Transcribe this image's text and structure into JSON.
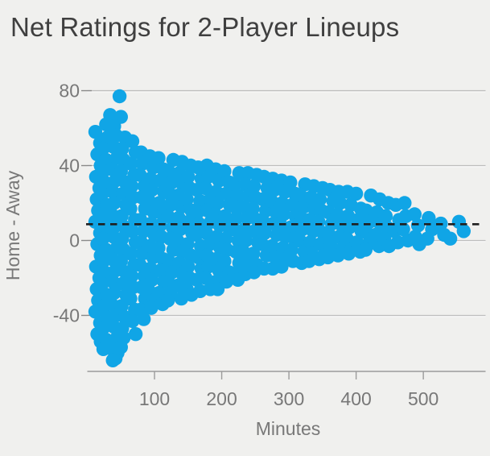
{
  "chart_data": {
    "type": "scatter",
    "title": "Net Ratings for 2-Player Lineups",
    "xlabel": "Minutes",
    "ylabel": "Home - Away",
    "x_ticks": [
      100,
      200,
      300,
      400,
      500
    ],
    "y_ticks": [
      80,
      40,
      0,
      -40
    ],
    "xlim": [
      0,
      593
    ],
    "ylim": [
      -69,
      90
    ],
    "grid": "horizontal",
    "legend": "none",
    "reference_line": {
      "y": 8.7,
      "style": "dashed"
    },
    "marker": {
      "shape": "circle",
      "radius_px": 8.7
    },
    "colors": {
      "background": "#f0f0ee",
      "marker": "#10a5e6",
      "title_text": "#3f3f3f",
      "axis_text": "#787878",
      "gridline": "#bdbdbd",
      "gridline_highlight": "#ffffff",
      "tick_stub": "#8a8a8a",
      "axis_line": "#9b9b9b",
      "reference_line": "#1f1f1f"
    },
    "points": [
      [
        48,
        77
      ],
      [
        34,
        67
      ],
      [
        50,
        66
      ],
      [
        28,
        62
      ],
      [
        40,
        61
      ],
      [
        12,
        58
      ],
      [
        19,
        52
      ],
      [
        15,
        46
      ],
      [
        20,
        40
      ],
      [
        13,
        34
      ],
      [
        18,
        28
      ],
      [
        14,
        22
      ],
      [
        16,
        16
      ],
      [
        12,
        10
      ],
      [
        19,
        4
      ],
      [
        15,
        -2
      ],
      [
        20,
        -8
      ],
      [
        13,
        -14
      ],
      [
        18,
        -20
      ],
      [
        14,
        -26
      ],
      [
        16,
        -32
      ],
      [
        12,
        -38
      ],
      [
        19,
        -44
      ],
      [
        15,
        -50
      ],
      [
        20,
        -54
      ],
      [
        30,
        55
      ],
      [
        23,
        49
      ],
      [
        28,
        43
      ],
      [
        24,
        37
      ],
      [
        26,
        31
      ],
      [
        22,
        25
      ],
      [
        29,
        19
      ],
      [
        25,
        13
      ],
      [
        30,
        7
      ],
      [
        23,
        1
      ],
      [
        28,
        -5
      ],
      [
        24,
        -11
      ],
      [
        26,
        -17
      ],
      [
        22,
        -23
      ],
      [
        29,
        -29
      ],
      [
        25,
        -35
      ],
      [
        30,
        -41
      ],
      [
        23,
        -47
      ],
      [
        28,
        -53
      ],
      [
        24,
        -58
      ],
      [
        43,
        56
      ],
      [
        39,
        50
      ],
      [
        44,
        44
      ],
      [
        37,
        38
      ],
      [
        42,
        32
      ],
      [
        38,
        26
      ],
      [
        40,
        20
      ],
      [
        36,
        14
      ],
      [
        43,
        8
      ],
      [
        39,
        2
      ],
      [
        44,
        -4
      ],
      [
        37,
        -10
      ],
      [
        42,
        -16
      ],
      [
        38,
        -22
      ],
      [
        40,
        -28
      ],
      [
        36,
        -34
      ],
      [
        43,
        -40
      ],
      [
        39,
        -46
      ],
      [
        44,
        -52
      ],
      [
        37,
        -58
      ],
      [
        42,
        -63
      ],
      [
        45,
        -60
      ],
      [
        33,
        -57
      ],
      [
        38,
        -64
      ],
      [
        56,
        55
      ],
      [
        52,
        49
      ],
      [
        54,
        43
      ],
      [
        50,
        37
      ],
      [
        57,
        31
      ],
      [
        53,
        25
      ],
      [
        58,
        19
      ],
      [
        51,
        13
      ],
      [
        56,
        7
      ],
      [
        52,
        1
      ],
      [
        54,
        -5
      ],
      [
        50,
        -11
      ],
      [
        57,
        -17
      ],
      [
        53,
        -23
      ],
      [
        58,
        -29
      ],
      [
        51,
        -35
      ],
      [
        56,
        -41
      ],
      [
        52,
        -47
      ],
      [
        54,
        -52
      ],
      [
        50,
        -57
      ],
      [
        67,
        53
      ],
      [
        72,
        47
      ],
      [
        65,
        41
      ],
      [
        70,
        35
      ],
      [
        66,
        29
      ],
      [
        68,
        23
      ],
      [
        64,
        17
      ],
      [
        71,
        11
      ],
      [
        67,
        5
      ],
      [
        72,
        -1
      ],
      [
        65,
        -7
      ],
      [
        70,
        -13
      ],
      [
        66,
        -19
      ],
      [
        68,
        -25
      ],
      [
        64,
        -31
      ],
      [
        71,
        -37
      ],
      [
        67,
        -43
      ],
      [
        72,
        -50
      ],
      [
        80,
        47
      ],
      [
        82,
        41
      ],
      [
        78,
        35
      ],
      [
        85,
        29
      ],
      [
        81,
        23
      ],
      [
        86,
        17
      ],
      [
        79,
        11
      ],
      [
        84,
        5
      ],
      [
        80,
        -1
      ],
      [
        82,
        -7
      ],
      [
        78,
        -13
      ],
      [
        85,
        -19
      ],
      [
        81,
        -25
      ],
      [
        86,
        -31
      ],
      [
        79,
        -37
      ],
      [
        84,
        -42
      ],
      [
        93,
        45
      ],
      [
        98,
        39
      ],
      [
        94,
        33
      ],
      [
        96,
        27
      ],
      [
        92,
        21
      ],
      [
        99,
        15
      ],
      [
        95,
        9
      ],
      [
        100,
        3
      ],
      [
        93,
        -3
      ],
      [
        98,
        -9
      ],
      [
        94,
        -15
      ],
      [
        96,
        -21
      ],
      [
        92,
        -27
      ],
      [
        99,
        -32
      ],
      [
        95,
        -36
      ],
      [
        106,
        44
      ],
      [
        113,
        38
      ],
      [
        109,
        32
      ],
      [
        114,
        26
      ],
      [
        107,
        20
      ],
      [
        112,
        14
      ],
      [
        108,
        8
      ],
      [
        110,
        2
      ],
      [
        106,
        -4
      ],
      [
        113,
        -10
      ],
      [
        109,
        -16
      ],
      [
        114,
        -22
      ],
      [
        107,
        -28
      ],
      [
        112,
        -34
      ],
      [
        128,
        43
      ],
      [
        121,
        37
      ],
      [
        126,
        31
      ],
      [
        122,
        25
      ],
      [
        124,
        19
      ],
      [
        120,
        13
      ],
      [
        127,
        7
      ],
      [
        123,
        1
      ],
      [
        128,
        -5
      ],
      [
        121,
        -11
      ],
      [
        126,
        -17
      ],
      [
        122,
        -23
      ],
      [
        124,
        -28
      ],
      [
        120,
        -32
      ],
      [
        141,
        42
      ],
      [
        137,
        36
      ],
      [
        142,
        30
      ],
      [
        135,
        24
      ],
      [
        140,
        18
      ],
      [
        136,
        12
      ],
      [
        138,
        6
      ],
      [
        134,
        0
      ],
      [
        141,
        -6
      ],
      [
        137,
        -12
      ],
      [
        142,
        -18
      ],
      [
        135,
        -24
      ],
      [
        140,
        -31
      ],
      [
        154,
        40
      ],
      [
        150,
        34
      ],
      [
        152,
        28
      ],
      [
        148,
        22
      ],
      [
        155,
        16
      ],
      [
        151,
        10
      ],
      [
        156,
        4
      ],
      [
        149,
        -2
      ],
      [
        154,
        -8
      ],
      [
        150,
        -14
      ],
      [
        152,
        -20
      ],
      [
        148,
        -26
      ],
      [
        155,
        -29
      ],
      [
        165,
        39
      ],
      [
        170,
        33
      ],
      [
        163,
        27
      ],
      [
        168,
        21
      ],
      [
        164,
        15
      ],
      [
        166,
        9
      ],
      [
        162,
        3
      ],
      [
        169,
        -3
      ],
      [
        165,
        -9
      ],
      [
        170,
        -15
      ],
      [
        163,
        -21
      ],
      [
        168,
        -27
      ],
      [
        178,
        40
      ],
      [
        180,
        34
      ],
      [
        176,
        28
      ],
      [
        183,
        22
      ],
      [
        179,
        16
      ],
      [
        184,
        10
      ],
      [
        177,
        4
      ],
      [
        182,
        -2
      ],
      [
        178,
        -8
      ],
      [
        180,
        -14
      ],
      [
        176,
        -20
      ],
      [
        183,
        -26
      ],
      [
        191,
        38
      ],
      [
        196,
        32
      ],
      [
        192,
        26
      ],
      [
        194,
        20
      ],
      [
        190,
        14
      ],
      [
        197,
        8
      ],
      [
        193,
        2
      ],
      [
        198,
        -4
      ],
      [
        191,
        -10
      ],
      [
        196,
        -16
      ],
      [
        192,
        -22
      ],
      [
        194,
        -26
      ],
      [
        204,
        37
      ],
      [
        211,
        31
      ],
      [
        207,
        25
      ],
      [
        212,
        19
      ],
      [
        205,
        13
      ],
      [
        210,
        7
      ],
      [
        206,
        1
      ],
      [
        208,
        -5
      ],
      [
        204,
        -11
      ],
      [
        211,
        -17
      ],
      [
        207,
        -22
      ],
      [
        226,
        36
      ],
      [
        219,
        30
      ],
      [
        224,
        24
      ],
      [
        220,
        18
      ],
      [
        222,
        12
      ],
      [
        218,
        6
      ],
      [
        225,
        0
      ],
      [
        221,
        -6
      ],
      [
        226,
        -12
      ],
      [
        219,
        -18
      ],
      [
        224,
        -21
      ],
      [
        239,
        36
      ],
      [
        235,
        30
      ],
      [
        240,
        24
      ],
      [
        233,
        18
      ],
      [
        238,
        12
      ],
      [
        234,
        6
      ],
      [
        236,
        0
      ],
      [
        232,
        -6
      ],
      [
        239,
        -12
      ],
      [
        235,
        -18
      ],
      [
        252,
        35
      ],
      [
        248,
        29
      ],
      [
        250,
        23
      ],
      [
        246,
        17
      ],
      [
        253,
        11
      ],
      [
        249,
        5
      ],
      [
        254,
        -1
      ],
      [
        247,
        -7
      ],
      [
        252,
        -13
      ],
      [
        248,
        -17
      ],
      [
        263,
        34
      ],
      [
        268,
        28
      ],
      [
        261,
        22
      ],
      [
        266,
        16
      ],
      [
        262,
        10
      ],
      [
        264,
        4
      ],
      [
        260,
        -2
      ],
      [
        267,
        -8
      ],
      [
        263,
        -15
      ],
      [
        276,
        33
      ],
      [
        278,
        27
      ],
      [
        274,
        21
      ],
      [
        281,
        15
      ],
      [
        277,
        9
      ],
      [
        282,
        3
      ],
      [
        275,
        -3
      ],
      [
        280,
        -9
      ],
      [
        276,
        -15
      ],
      [
        289,
        32
      ],
      [
        294,
        26
      ],
      [
        290,
        20
      ],
      [
        292,
        14
      ],
      [
        288,
        8
      ],
      [
        295,
        2
      ],
      [
        291,
        -4
      ],
      [
        296,
        -10
      ],
      [
        289,
        -14
      ],
      [
        302,
        31
      ],
      [
        309,
        25
      ],
      [
        305,
        19
      ],
      [
        310,
        13
      ],
      [
        303,
        7
      ],
      [
        308,
        1
      ],
      [
        304,
        -5
      ],
      [
        306,
        -11
      ],
      [
        324,
        30
      ],
      [
        317,
        24
      ],
      [
        322,
        18
      ],
      [
        318,
        12
      ],
      [
        320,
        6
      ],
      [
        316,
        0
      ],
      [
        323,
        -6
      ],
      [
        319,
        -12
      ],
      [
        337,
        29
      ],
      [
        333,
        23
      ],
      [
        338,
        17
      ],
      [
        331,
        11
      ],
      [
        336,
        5
      ],
      [
        332,
        -1
      ],
      [
        334,
        -7
      ],
      [
        330,
        -11
      ],
      [
        350,
        28
      ],
      [
        346,
        22
      ],
      [
        348,
        16
      ],
      [
        344,
        10
      ],
      [
        351,
        4
      ],
      [
        347,
        -2
      ],
      [
        352,
        -8
      ],
      [
        345,
        -10
      ],
      [
        361,
        27
      ],
      [
        366,
        21
      ],
      [
        359,
        15
      ],
      [
        364,
        9
      ],
      [
        360,
        3
      ],
      [
        362,
        -3
      ],
      [
        358,
        -9
      ],
      [
        374,
        26
      ],
      [
        376,
        20
      ],
      [
        372,
        14
      ],
      [
        379,
        8
      ],
      [
        375,
        2
      ],
      [
        380,
        -4
      ],
      [
        373,
        -8
      ],
      [
        387,
        26
      ],
      [
        392,
        19
      ],
      [
        388,
        13
      ],
      [
        390,
        7
      ],
      [
        386,
        1
      ],
      [
        393,
        -5
      ],
      [
        389,
        -7
      ],
      [
        400,
        25
      ],
      [
        407,
        17
      ],
      [
        403,
        11
      ],
      [
        408,
        5
      ],
      [
        401,
        -1
      ],
      [
        406,
        -6
      ],
      [
        422,
        24
      ],
      [
        415,
        16
      ],
      [
        420,
        10
      ],
      [
        416,
        4
      ],
      [
        418,
        -2
      ],
      [
        414,
        -5
      ],
      [
        435,
        22
      ],
      [
        431,
        15
      ],
      [
        436,
        9
      ],
      [
        429,
        3
      ],
      [
        434,
        -3
      ],
      [
        448,
        20
      ],
      [
        444,
        13
      ],
      [
        446,
        7
      ],
      [
        442,
        1
      ],
      [
        449,
        -3
      ],
      [
        459,
        19
      ],
      [
        464,
        11
      ],
      [
        457,
        5
      ],
      [
        462,
        -1
      ],
      [
        472,
        20
      ],
      [
        474,
        13
      ],
      [
        470,
        6
      ],
      [
        477,
        0
      ],
      [
        487,
        14
      ],
      [
        492,
        8
      ],
      [
        488,
        2
      ],
      [
        494,
        -2
      ],
      [
        508,
        12
      ],
      [
        513,
        6
      ],
      [
        506,
        1
      ],
      [
        526,
        9
      ],
      [
        531,
        3
      ],
      [
        540,
        1
      ],
      [
        553,
        10
      ],
      [
        560,
        5
      ]
    ]
  }
}
